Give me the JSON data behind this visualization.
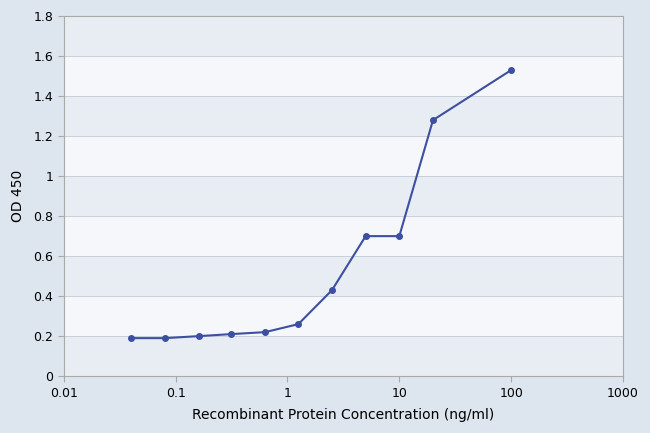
{
  "x": [
    0.04,
    0.08,
    0.16,
    0.31,
    0.63,
    1.25,
    2.5,
    5.0,
    10.0,
    20.0,
    100.0
  ],
  "y": [
    0.19,
    0.19,
    0.2,
    0.21,
    0.22,
    0.26,
    0.43,
    0.7,
    0.7,
    1.28,
    1.53
  ],
  "line_color": "#3d4fa0",
  "marker_color": "#3d4fa0",
  "marker_style": "o",
  "marker_size": 4,
  "line_width": 1.5,
  "xlabel": "Recombinant Protein Concentration (ng/ml)",
  "ylabel": "OD 450",
  "xlim_log": [
    0.01,
    1000
  ],
  "ylim": [
    0,
    1.8
  ],
  "yticks": [
    0,
    0.2,
    0.4,
    0.6,
    0.8,
    1.0,
    1.2,
    1.4,
    1.6,
    1.8
  ],
  "ytick_labels": [
    "0",
    "0.2",
    "0.4",
    "0.6",
    "0.8",
    "1",
    "1.2",
    "1.4",
    "1.6",
    "1.8"
  ],
  "xticks": [
    0.01,
    0.1,
    1,
    10,
    100,
    1000
  ],
  "xtick_labels": [
    "0.01",
    "0.1",
    "1",
    "10",
    "100",
    "1000"
  ],
  "outer_bg": "#dde5ee",
  "plot_bg_color": "#f5f7fa",
  "grid_color": "#c8d0da",
  "xlabel_fontsize": 10,
  "ylabel_fontsize": 10,
  "tick_fontsize": 9,
  "spine_color": "#aaaaaa",
  "title": ""
}
